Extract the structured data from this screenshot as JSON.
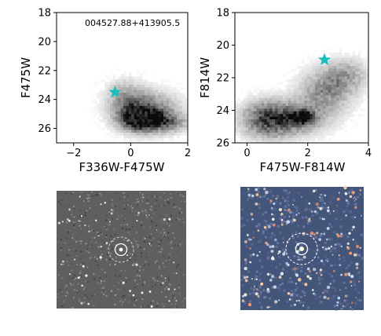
{
  "chart_data": [
    {
      "type": "scatter",
      "title": "",
      "annotation": "004527.88+413905.5",
      "xlabel": "F336W-F475W",
      "ylabel": "F475W",
      "xlim": [
        -2.6,
        2.0
      ],
      "ylim": [
        27.0,
        18.0
      ],
      "y_inverted": true,
      "xticks": [
        -2,
        0,
        2
      ],
      "yticks": [
        18,
        20,
        22,
        24,
        26
      ],
      "background": "density",
      "density_clumps": [
        {
          "x": 0.3,
          "y": 25.3,
          "sx": 0.45,
          "sy": 0.55,
          "w": 1.0
        },
        {
          "x": 0.6,
          "y": 24.8,
          "sx": 0.75,
          "sy": 0.9,
          "w": 0.55
        },
        {
          "x": -0.2,
          "y": 23.8,
          "sx": 0.45,
          "sy": 0.8,
          "w": 0.3
        },
        {
          "x": 1.2,
          "y": 25.6,
          "sx": 0.55,
          "sy": 0.45,
          "w": 0.45
        }
      ],
      "highlight": {
        "x": -0.55,
        "y": 23.5,
        "marker": "star",
        "color": "#17bebe"
      }
    },
    {
      "type": "scatter",
      "title": "",
      "xlabel": "F475W-F814W",
      "ylabel": "F814W",
      "xlim": [
        -0.4,
        4.0
      ],
      "ylim": [
        26.0,
        18.0
      ],
      "y_inverted": true,
      "xticks": [
        0,
        2,
        4
      ],
      "yticks": [
        18,
        20,
        22,
        24,
        26
      ],
      "background": "density",
      "density_clumps": [
        {
          "x": 1.8,
          "y": 24.4,
          "sx": 0.22,
          "sy": 0.25,
          "w": 1.0
        },
        {
          "x": 1.4,
          "y": 24.5,
          "sx": 0.8,
          "sy": 0.7,
          "w": 0.6
        },
        {
          "x": 0.6,
          "y": 24.6,
          "sx": 0.55,
          "sy": 0.8,
          "w": 0.45
        },
        {
          "x": 2.6,
          "y": 22.8,
          "sx": 0.6,
          "sy": 0.9,
          "w": 0.45
        },
        {
          "x": 3.3,
          "y": 21.8,
          "sx": 0.5,
          "sy": 0.7,
          "w": 0.3
        }
      ],
      "highlight": {
        "x": 2.55,
        "y": 20.9,
        "marker": "star",
        "color": "#17bebe"
      }
    }
  ],
  "images": [
    {
      "style": "grayscale-noise",
      "bg": "#5f5f5f",
      "circle_color": "#ffffff",
      "star_count": 70
    },
    {
      "style": "color-field",
      "bg": "#44557a",
      "circle_color": "#ffffff",
      "star_count": 240
    }
  ]
}
